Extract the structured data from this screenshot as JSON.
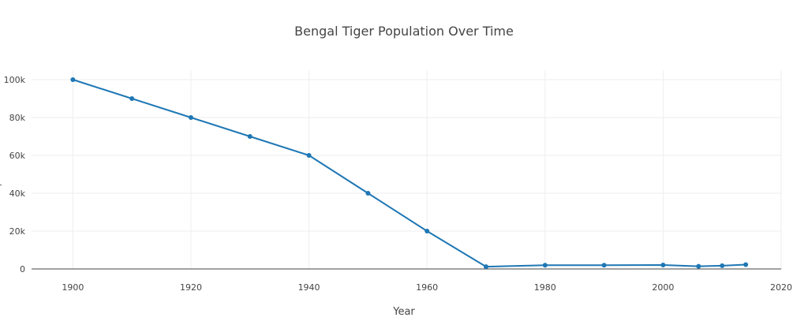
{
  "chart_data": {
    "type": "line",
    "title": "Bengal Tiger Population Over Time",
    "xlabel": "Year",
    "ylabel": "",
    "xlim": [
      1893,
      2020
    ],
    "ylim": [
      0,
      105000
    ],
    "grid": true,
    "legend": "none",
    "color": "#1f77b4",
    "x_ticks": [
      1900,
      1920,
      1940,
      1960,
      1980,
      2000,
      2020
    ],
    "y_ticks": [
      0,
      20000,
      40000,
      60000,
      80000,
      100000
    ],
    "y_tick_labels": [
      "0",
      "20k",
      "40k",
      "60k",
      "80k",
      "100k"
    ],
    "series": [
      {
        "x": [
          1900,
          1910,
          1920,
          1930,
          1940,
          1950,
          1960,
          1970,
          1980,
          1990,
          2000,
          2006,
          2010,
          2014
        ],
        "values": [
          100000,
          90000,
          80000,
          70000,
          60000,
          40000,
          20000,
          1200,
          2000,
          2000,
          2100,
          1400,
          1700,
          2300
        ]
      }
    ]
  }
}
